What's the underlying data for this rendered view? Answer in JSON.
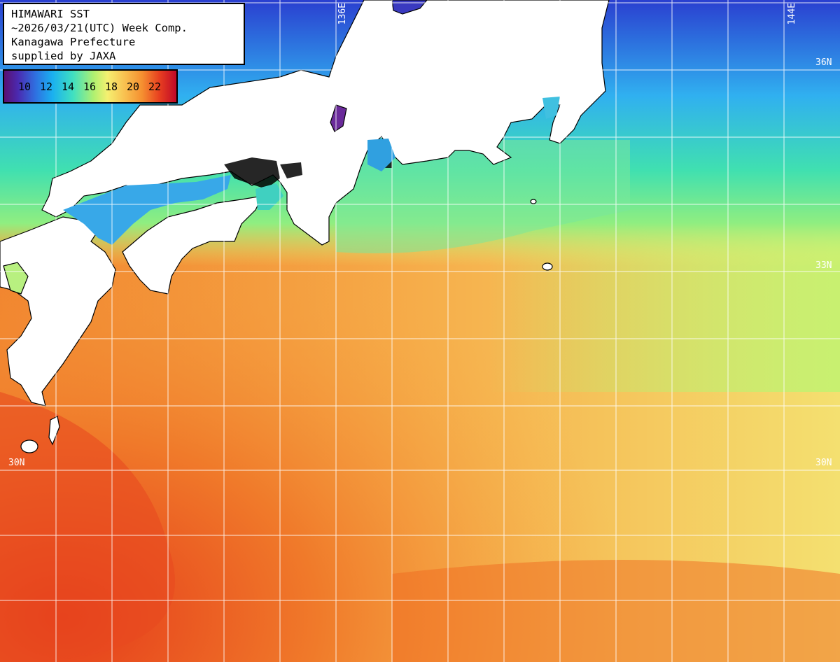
{
  "title": {
    "line1": "HIMAWARI SST",
    "line2": "~2026/03/21(UTC) Week Comp.",
    "line3": "Kanagawa Prefecture",
    "line4": "supplied by JAXA"
  },
  "legend": {
    "labels": [
      "10",
      "12",
      "14",
      "16",
      "18",
      "20",
      "22"
    ]
  },
  "grid_labels": {
    "lon_136": "136E",
    "lon_144": "144E",
    "lat_36": "36N",
    "lat_33": "33N",
    "lat_30_left": "30N",
    "lat_30_right": "30N"
  },
  "colors": {
    "land": "#ffffff",
    "coast": "#000000",
    "grid": "#ffffff"
  }
}
